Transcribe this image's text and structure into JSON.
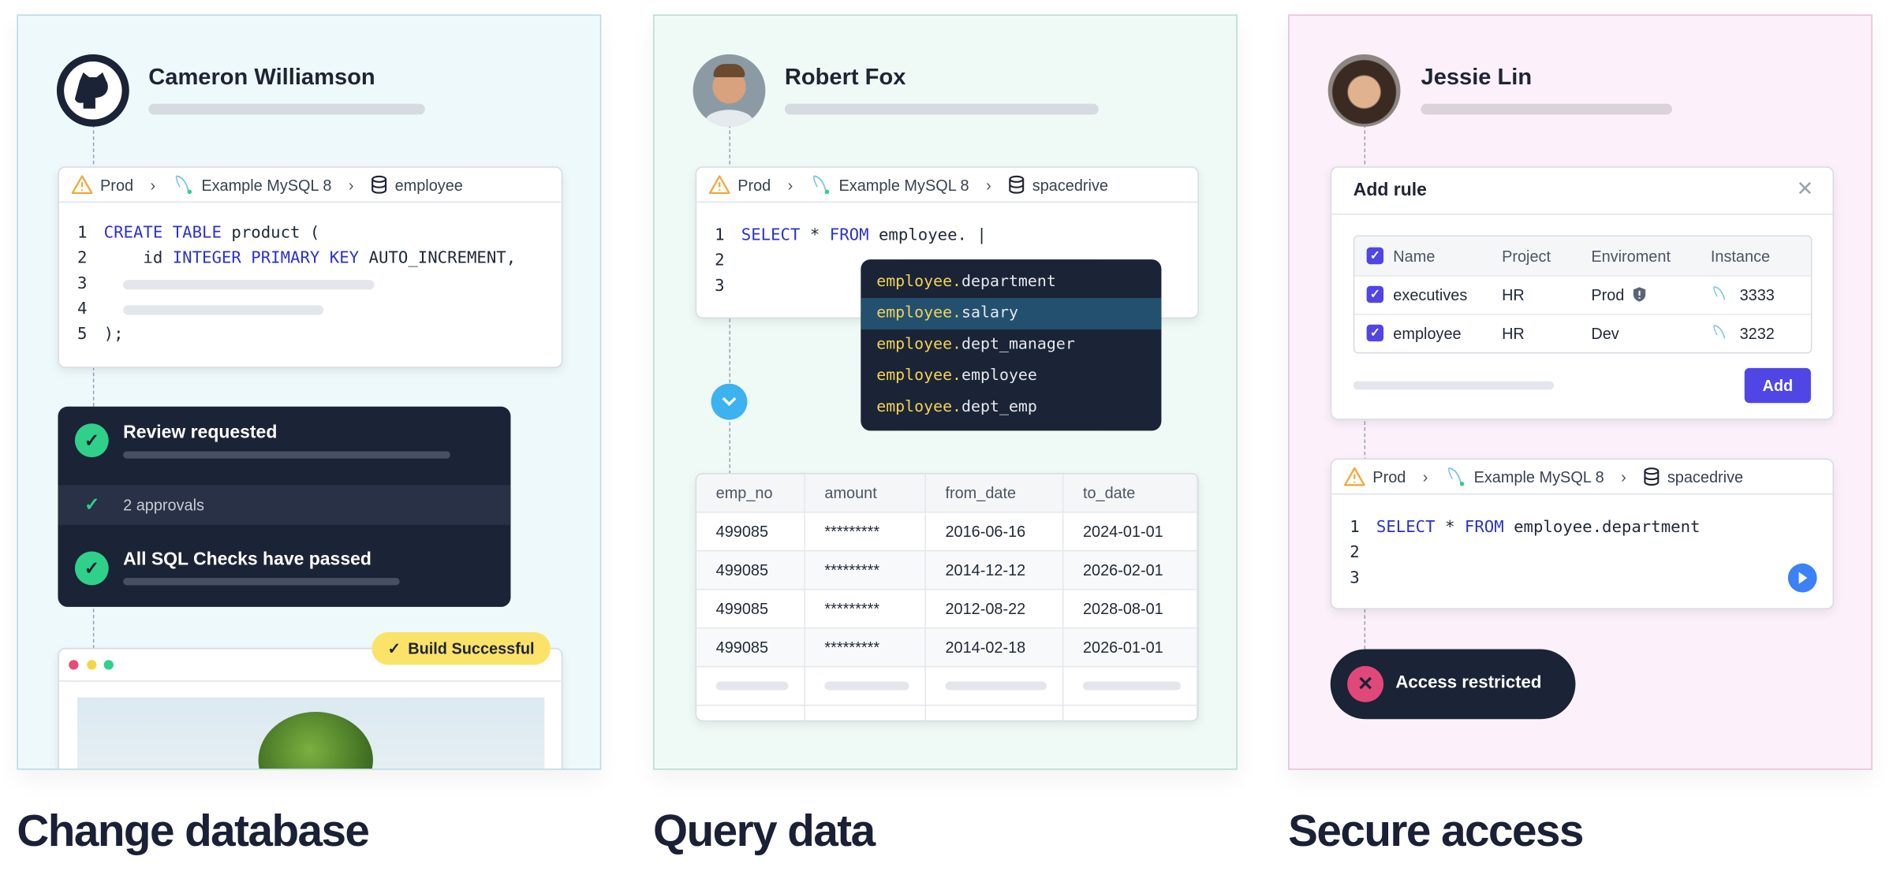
{
  "colors": {
    "accent": "#4f46e5",
    "success": "#2fd08a",
    "danger": "#e0487a",
    "keyword": "#2b32c9",
    "suggestion_prefix": "#f1d456",
    "badge": "#fbe36a",
    "run": "#3b82f6",
    "chevron": "#3db2f0"
  },
  "sections": [
    {
      "title": "Change database",
      "user": {
        "name": "Cameron Williamson",
        "avatar": "github-icon"
      },
      "breadcrumb": {
        "env": "Prod",
        "instance": "Example MySQL 8",
        "database": "employee"
      },
      "code": [
        {
          "n": "1",
          "tokens": [
            {
              "t": "CREATE TABLE",
              "k": true
            },
            {
              "t": " product (",
              "k": false
            }
          ]
        },
        {
          "n": "2",
          "tokens": [
            {
              "t": "    id ",
              "k": false
            },
            {
              "t": "INTEGER PRIMARY KEY",
              "k": true
            },
            {
              "t": " AUTO_INCREMENT,",
              "k": false
            }
          ]
        },
        {
          "n": "3",
          "tokens": []
        },
        {
          "n": "4",
          "tokens": []
        },
        {
          "n": "5",
          "tokens": [
            {
              "t": ");",
              "k": false
            }
          ]
        }
      ],
      "review": {
        "requested": "Review requested",
        "approvals": "2 approvals",
        "checks": "All SQL Checks have passed"
      },
      "build_badge": "Build Successful"
    },
    {
      "title": "Query data",
      "user": {
        "name": "Robert Fox"
      },
      "breadcrumb": {
        "env": "Prod",
        "instance": "Example MySQL 8",
        "database": "spacedrive"
      },
      "code": [
        {
          "n": "1",
          "tokens": [
            {
              "t": "SELECT",
              "k": true
            },
            {
              "t": " * ",
              "k": false
            },
            {
              "t": "FROM",
              "k": true
            },
            {
              "t": " employee. |",
              "k": false
            }
          ]
        },
        {
          "n": "2",
          "tokens": []
        },
        {
          "n": "3",
          "tokens": []
        }
      ],
      "autocomplete": {
        "prefix": "employee.",
        "items": [
          "department",
          "salary",
          "dept_manager",
          "employee",
          "dept_emp"
        ],
        "selected": 1
      },
      "table": {
        "columns": [
          "emp_no",
          "amount",
          "from_date",
          "to_date"
        ],
        "rows": [
          [
            "499085",
            "*********",
            "2016-06-16",
            "2024-01-01"
          ],
          [
            "499085",
            "*********",
            "2014-12-12",
            "2026-02-01"
          ],
          [
            "499085",
            "*********",
            "2012-08-22",
            "2028-08-01"
          ],
          [
            "499085",
            "*********",
            "2014-02-18",
            "2026-01-01"
          ]
        ]
      }
    },
    {
      "title": "Secure access",
      "user": {
        "name": "Jessie Lin"
      },
      "dialog": {
        "title": "Add rule",
        "columns": [
          "Name",
          "Project",
          "Enviroment",
          "Instance"
        ],
        "rows": [
          {
            "name": "executives",
            "project": "HR",
            "env": "Prod",
            "protected": true,
            "instance": "3333"
          },
          {
            "name": "employee",
            "project": "HR",
            "env": "Dev",
            "protected": false,
            "instance": "3232"
          }
        ],
        "add_label": "Add"
      },
      "breadcrumb": {
        "env": "Prod",
        "instance": "Example MySQL 8",
        "database": "spacedrive"
      },
      "code": [
        {
          "n": "1",
          "tokens": [
            {
              "t": "SELECT",
              "k": true
            },
            {
              "t": " * ",
              "k": false
            },
            {
              "t": "FROM",
              "k": true
            },
            {
              "t": " employee.department",
              "k": false
            }
          ]
        },
        {
          "n": "2",
          "tokens": []
        },
        {
          "n": "3",
          "tokens": []
        }
      ],
      "toast": "Access restricted"
    }
  ]
}
